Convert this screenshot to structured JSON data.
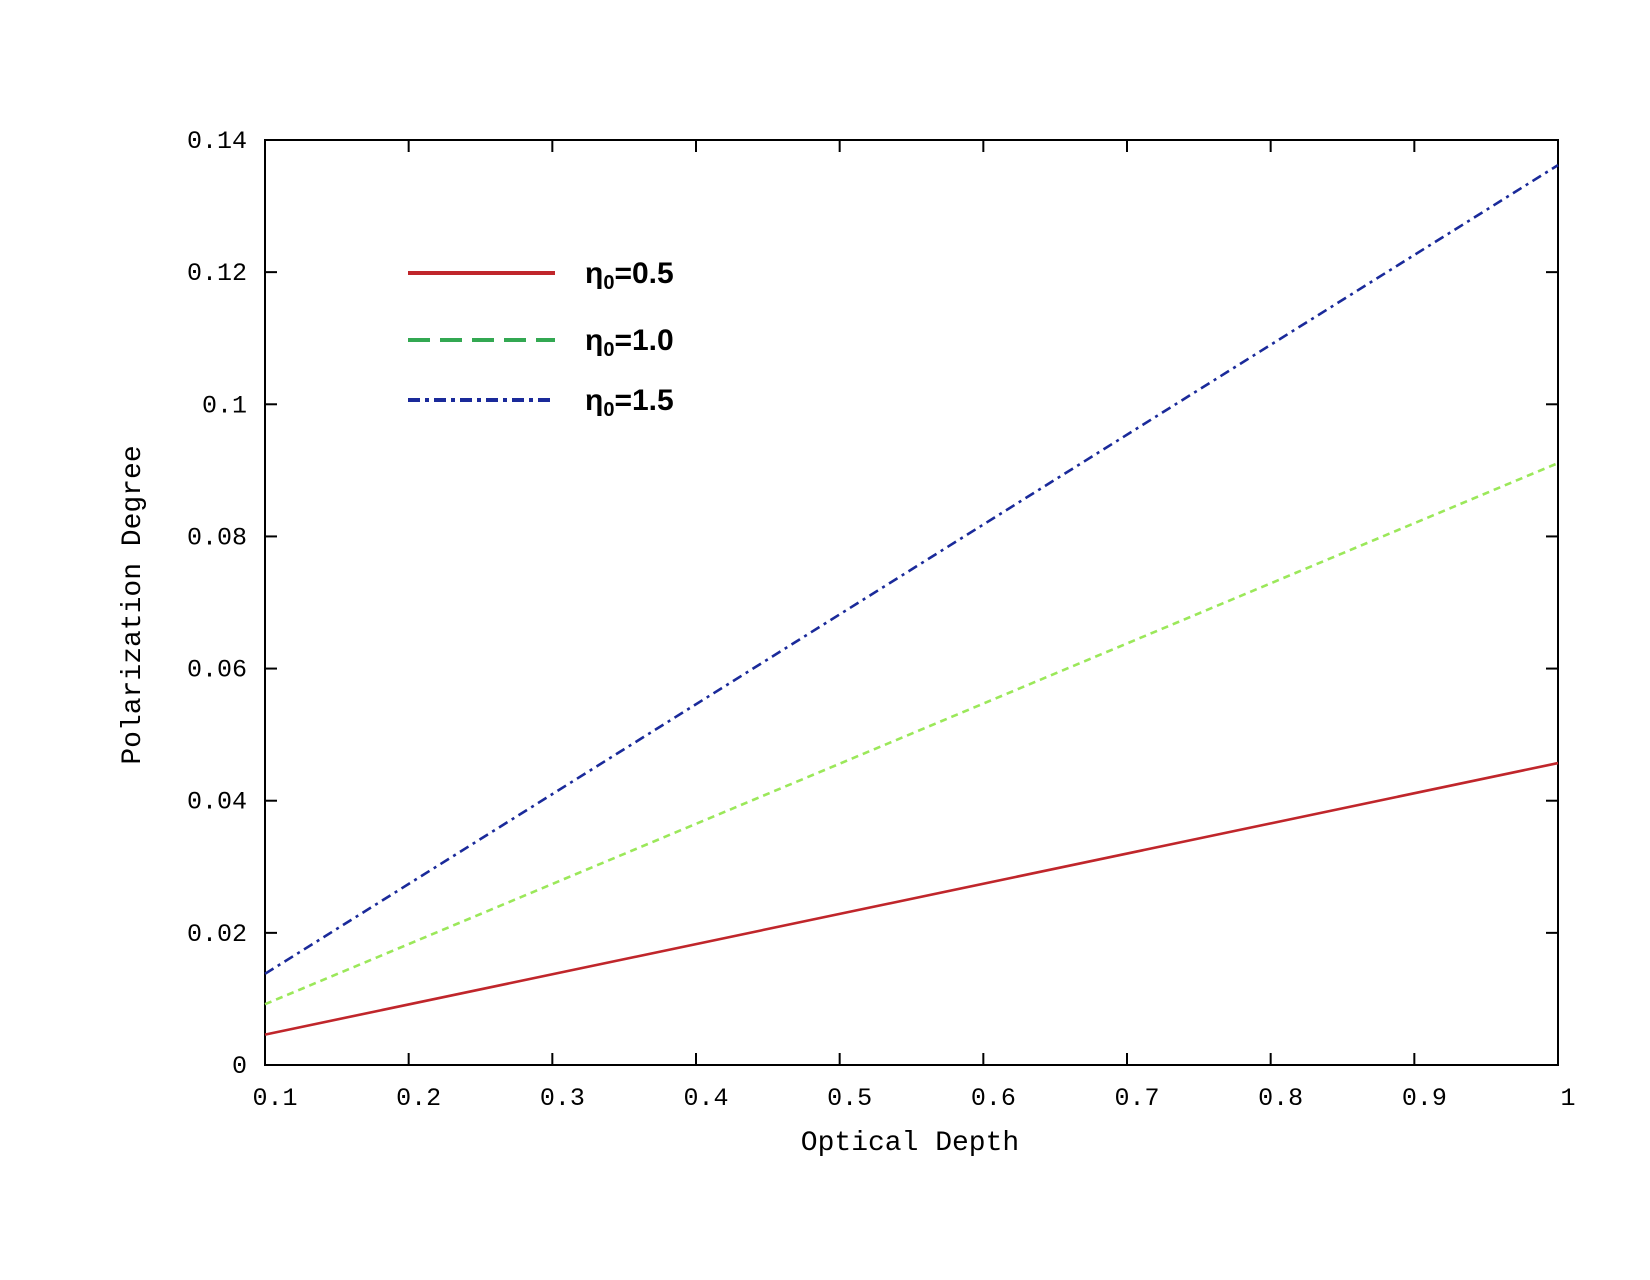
{
  "chart_data": {
    "type": "line",
    "xlabel": "Optical Depth",
    "ylabel": "Polarization Degree",
    "xlim": [
      0.1,
      1.0
    ],
    "ylim": [
      0,
      0.14
    ],
    "grid": false,
    "legend_position": "top-left",
    "x_ticks": [
      "0.1",
      "0.2",
      "0.3",
      "0.4",
      "0.5",
      "0.6",
      "0.7",
      "0.8",
      "0.9",
      "1"
    ],
    "y_ticks": [
      "0",
      "0.02",
      "0.04",
      "0.06",
      "0.08",
      "0.1",
      "0.12",
      "0.14"
    ],
    "series": [
      {
        "name": "η₀=0.5",
        "label_main": "η",
        "label_sub": "0",
        "label_rest": "=0.5",
        "color": "#c0262b",
        "style": "solid",
        "legend_style": "solid",
        "x": [
          0.1,
          1.0
        ],
        "y": [
          0.0046,
          0.0457
        ]
      },
      {
        "name": "η₀=1.0",
        "label_main": "η",
        "label_sub": "0",
        "label_rest": "=1.0",
        "color": "#9be85a",
        "legend_color": "#33a852",
        "style": "dashed",
        "legend_style": "dashed",
        "x": [
          0.1,
          1.0
        ],
        "y": [
          0.0092,
          0.0911
        ]
      },
      {
        "name": "η₀=1.5",
        "label_main": "η",
        "label_sub": "0",
        "label_rest": "=1.5",
        "color": "#1a2a9a",
        "style": "dashdot",
        "legend_style": "dashdot",
        "x": [
          0.1,
          1.0
        ],
        "y": [
          0.0138,
          0.1362
        ]
      }
    ]
  }
}
